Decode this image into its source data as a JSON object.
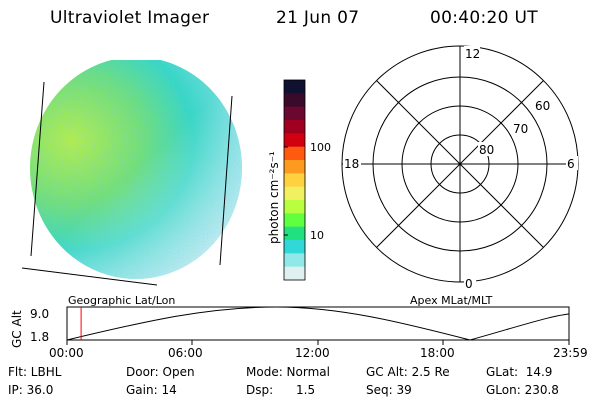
{
  "header": {
    "title": "Ultraviolet Imager",
    "date": "21 Jun 07",
    "time": "00:40:20 UT"
  },
  "colorbar": {
    "unit_label": "photon cm⁻²s⁻¹",
    "ticks": [
      "100",
      "10"
    ],
    "colors": [
      "#101030",
      "#3a0a2a",
      "#6a0830",
      "#a00020",
      "#d00010",
      "#ff5a10",
      "#ff9a20",
      "#ffd040",
      "#f0f060",
      "#b8ff40",
      "#60ff40",
      "#20e080",
      "#30d8d8",
      "#90e8e8",
      "#e0f0f0"
    ]
  },
  "polar": {
    "labels": {
      "top": "12",
      "bottom": "0",
      "left": "18",
      "right": "6",
      "ring60": "60",
      "ring70": "70",
      "ring80": "80"
    }
  },
  "strip": {
    "left_label": "Geographic Lat/Lon",
    "right_label": "Apex MLat/MLT",
    "axis_label": "GC Alt",
    "y_ticks": [
      "9.0",
      "1.8"
    ],
    "x_ticks": [
      "00:00",
      "06:00",
      "12:00",
      "18:00",
      "23:59"
    ],
    "marker_color": "#ff0000",
    "current_time_fraction": 0.028
  },
  "info": {
    "flt": "Flt: LBHL",
    "ip": "IP: 36.0",
    "door": "Door: Open",
    "gain": "Gain: 14",
    "mode": "Mode: Normal",
    "dsp": "Dsp:      1.5",
    "gc_alt": "GC Alt: 2.5 Re",
    "seq": "Seq: 39",
    "glat": "GLat:  14.9",
    "glon": "GLon: 230.8"
  }
}
